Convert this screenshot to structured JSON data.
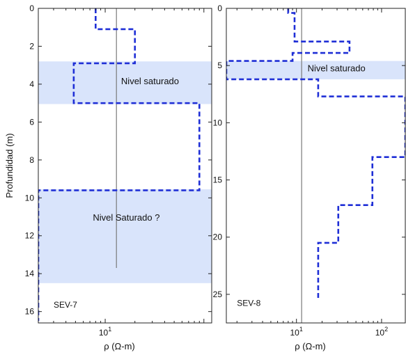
{
  "chart_data": [
    {
      "type": "line",
      "name": "SEV-7",
      "panel_label": "SEV-7",
      "xlabel": "ρ (Ω-m)",
      "ylabel": "Profundidad (m)",
      "x_scale": "log",
      "xlim": [
        2.1,
        120
      ],
      "ylim": [
        0,
        16.6
      ],
      "y_inverted": true,
      "y_ticks": [
        0,
        2,
        4,
        6,
        8,
        10,
        12,
        14,
        16
      ],
      "x_ticks": [
        {
          "value": 10,
          "base": "10",
          "exp": "1"
        }
      ],
      "series_color": "#1f2fd6",
      "band_color": "#d9e4fb",
      "grid": false,
      "steps": [
        {
          "rho": 8,
          "top": 0,
          "bottom": 1.1
        },
        {
          "rho": 20,
          "top": 1.1,
          "bottom": 2.9
        },
        {
          "rho": 4.8,
          "top": 2.9,
          "bottom": 5.0
        },
        {
          "rho": 90,
          "top": 5.0,
          "bottom": 9.6
        },
        {
          "rho": 2.1,
          "top": 9.6,
          "bottom": 16.5
        }
      ],
      "reference_line": {
        "x": 13,
        "y_from": 0,
        "y_to": 13.7
      },
      "bands": [
        {
          "y_from": 2.8,
          "y_to": 5.05,
          "label": "Nivel saturado",
          "label_x": 14.5,
          "label_y": 4.0
        },
        {
          "y_from": 9.55,
          "y_to": 14.5,
          "label": "Nivel Saturado ?",
          "label_x": 7.5,
          "label_y": 11.2
        }
      ],
      "sev_label_pos": {
        "x": 3.0,
        "y": 15.8
      }
    },
    {
      "type": "line",
      "name": "SEV-8",
      "panel_label": "SEV-8",
      "xlabel": "ρ (Ω-m)",
      "ylabel": "",
      "x_scale": "log",
      "xlim": [
        1.5,
        190
      ],
      "ylim": [
        0,
        27.5
      ],
      "y_inverted": true,
      "y_ticks": [
        0,
        5,
        10,
        15,
        20,
        25
      ],
      "x_ticks": [
        {
          "value": 10,
          "base": "10",
          "exp": "1"
        },
        {
          "value": 100,
          "base": "10",
          "exp": "2"
        }
      ],
      "series_color": "#1f2fd6",
      "band_color": "#d9e4fb",
      "grid": false,
      "steps": [
        {
          "rho": 8,
          "top": 0,
          "bottom": 0.4
        },
        {
          "rho": 9.5,
          "top": 0.4,
          "bottom": 2.9
        },
        {
          "rho": 42,
          "top": 2.9,
          "bottom": 3.9
        },
        {
          "rho": 9.0,
          "top": 3.9,
          "bottom": 4.6
        },
        {
          "rho": 1.5,
          "top": 4.6,
          "bottom": 6.2
        },
        {
          "rho": 18,
          "top": 6.2,
          "bottom": 7.7
        },
        {
          "rho": 190,
          "top": 7.7,
          "bottom": 13.0
        },
        {
          "rho": 78,
          "top": 13.0,
          "bottom": 17.2
        },
        {
          "rho": 31,
          "top": 17.2,
          "bottom": 20.5
        },
        {
          "rho": 18,
          "top": 20.5,
          "bottom": 25.5
        }
      ],
      "reference_line": {
        "x": 11.5,
        "y_from": 0,
        "y_to": 27.5
      },
      "bands": [
        {
          "y_from": 4.6,
          "y_to": 6.2,
          "label": "Nivel saturado",
          "label_x": 13.5,
          "label_y": 5.5
        }
      ],
      "sev_label_pos": {
        "x": 2.0,
        "y": 26.0
      }
    }
  ]
}
